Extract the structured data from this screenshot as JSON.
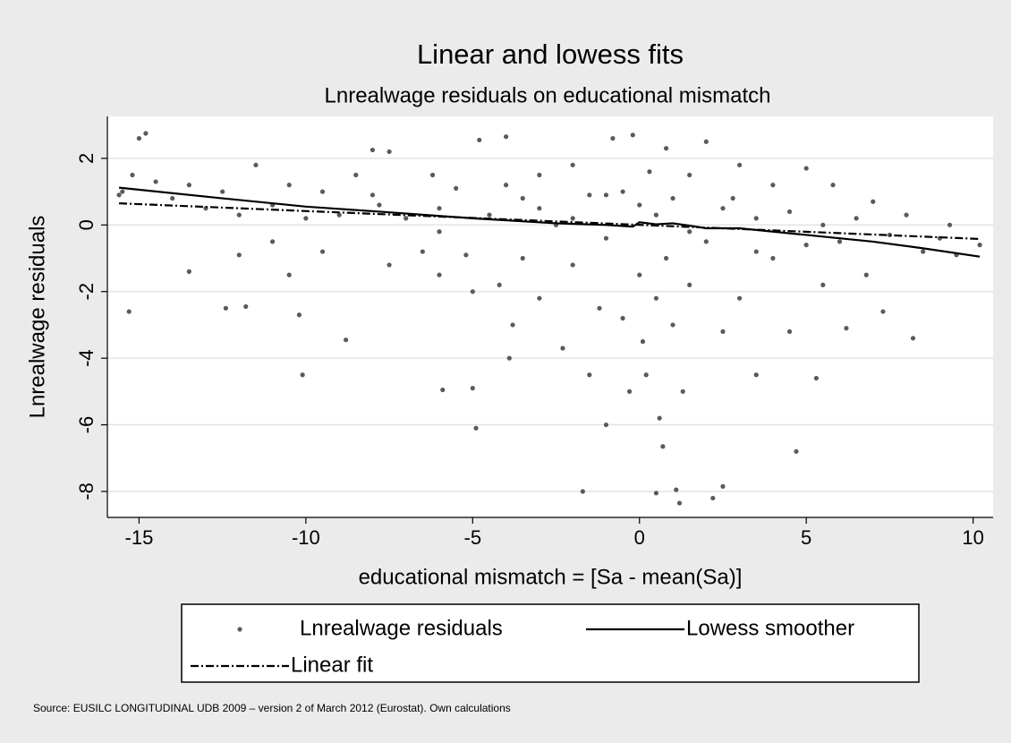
{
  "chart_data": {
    "type": "scatter",
    "title": "Linear and lowess fits",
    "subtitle": "Lnrealwage residuals on educational mismatch",
    "x_label": "educational mismatch = [Sa - mean(Sa)]",
    "y_label": "Lnrealwage residuals",
    "note": "Source: EUSILC LONGITUDINAL UDB 2009 – version 2 of March 2012 (Eurostat). Own calculations",
    "xlim": [
      -15.95,
      10.6
    ],
    "ylim": [
      -8.78,
      3.26
    ],
    "xticks": [
      -15,
      -10,
      -5,
      0,
      5,
      10
    ],
    "yticks": [
      2,
      0,
      -2,
      -4,
      -6,
      -8
    ],
    "grid": true,
    "legend": "bottom",
    "series": [
      {
        "name": "Lnrealwage residuals",
        "type": "scatter",
        "color": "#5a5a5a",
        "x": [
          -15.5,
          -15.2,
          -15.0,
          -14.8,
          -15.3,
          -15.6,
          -14.5,
          -14,
          -13.5,
          -13,
          -12.5,
          -12,
          -12.4,
          -11.8,
          -11.5,
          -11,
          -11,
          -10.5,
          -10.5,
          -10.2,
          -10.1,
          -10,
          -9.5,
          -9.5,
          -9,
          -8.8,
          -8.5,
          -8,
          -7.8,
          -7.5,
          -7.5,
          -7,
          -6.5,
          -6.2,
          -6,
          -6,
          -5.9,
          -5.5,
          -5.2,
          -5,
          -5,
          -4.9,
          -4.8,
          -4.5,
          -4.2,
          -4,
          -3.9,
          -3.8,
          -3.5,
          -3.5,
          -3,
          -3,
          -2.5,
          -2.3,
          -2,
          -2,
          -1.7,
          -1.5,
          -1.5,
          -1.2,
          -1,
          -1,
          -0.8,
          -0.5,
          -0.5,
          -0.3,
          -0.2,
          0,
          0,
          0.1,
          0.2,
          0.3,
          0.5,
          0.5,
          0.6,
          0.7,
          0.8,
          0.8,
          1,
          1,
          1.1,
          1.2,
          1.3,
          1.5,
          1.5,
          2,
          2,
          2.2,
          2.5,
          2.5,
          2.8,
          3,
          3,
          3.5,
          3.5,
          4,
          4,
          4.5,
          4.7,
          5,
          5,
          5.3,
          5.5,
          5.8,
          6,
          6.2,
          6.5,
          6.8,
          7,
          7.3,
          7.5,
          8,
          8.2,
          8.5,
          9,
          9.5,
          10.2,
          9.3,
          -13.5,
          -12,
          -3,
          -2,
          -1,
          0.5,
          1.5,
          2.5,
          3.5,
          4.5,
          5.5,
          -8,
          -6,
          -4
        ],
        "values": [
          1.0,
          1.5,
          2.6,
          2.75,
          -2.6,
          0.9,
          1.3,
          0.8,
          1.2,
          0.5,
          1.0,
          0.3,
          -2.5,
          -2.45,
          1.8,
          0.6,
          -0.5,
          1.2,
          -1.5,
          -2.7,
          -4.5,
          0.2,
          1.0,
          -0.8,
          0.3,
          -3.45,
          1.5,
          2.25,
          0.6,
          -1.2,
          2.2,
          0.2,
          -0.8,
          1.5,
          0.5,
          -1.5,
          -4.95,
          1.1,
          -0.9,
          -2.0,
          -4.9,
          -6.1,
          2.55,
          0.3,
          -1.8,
          2.65,
          -4.0,
          -3.0,
          0.8,
          -1.0,
          1.5,
          -2.2,
          0.0,
          -3.7,
          1.8,
          -1.2,
          -8.0,
          -4.5,
          0.9,
          -2.5,
          -0.4,
          -6.0,
          2.6,
          1.0,
          -2.8,
          -5.0,
          2.7,
          -1.5,
          0.6,
          -3.5,
          -4.5,
          1.6,
          -8.05,
          -2.2,
          -5.8,
          -6.65,
          2.3,
          -1.0,
          0.8,
          -3.0,
          -7.95,
          -8.35,
          -5.0,
          -1.8,
          1.5,
          2.5,
          -0.5,
          -8.2,
          -7.85,
          -3.2,
          0.8,
          -2.2,
          1.8,
          -4.5,
          0.2,
          -1.0,
          1.2,
          -3.2,
          -6.8,
          1.7,
          -0.6,
          -4.6,
          -1.8,
          1.2,
          -0.5,
          -3.1,
          0.2,
          -1.5,
          0.7,
          -2.6,
          -0.3,
          0.3,
          -3.4,
          -0.8,
          -0.4,
          -0.9,
          -0.6,
          0.0,
          -1.4,
          -0.9,
          0.5,
          0.2,
          0.9,
          0.3,
          -0.2,
          0.5,
          -0.8,
          0.4,
          0.0,
          0.9,
          -0.2,
          1.2
        ]
      },
      {
        "name": "Lowess smoother",
        "type": "line",
        "style": "solid",
        "color": "#000000",
        "x": [
          -15.6,
          -12.5,
          -10,
          -7.5,
          -5,
          -2.5,
          -1,
          -0.2,
          0,
          0.5,
          1,
          1.5,
          2,
          3,
          5,
          7,
          8.5,
          10.2
        ],
        "values": [
          1.12,
          0.8,
          0.55,
          0.38,
          0.2,
          0.05,
          0.0,
          -0.05,
          0.08,
          0.02,
          0.05,
          -0.02,
          -0.1,
          -0.1,
          -0.3,
          -0.5,
          -0.7,
          -0.95
        ]
      },
      {
        "name": "Linear fit",
        "type": "line",
        "style": "dashdot",
        "color": "#000000",
        "x": [
          -15.6,
          10.2
        ],
        "values": [
          0.65,
          -0.42
        ]
      }
    ]
  }
}
